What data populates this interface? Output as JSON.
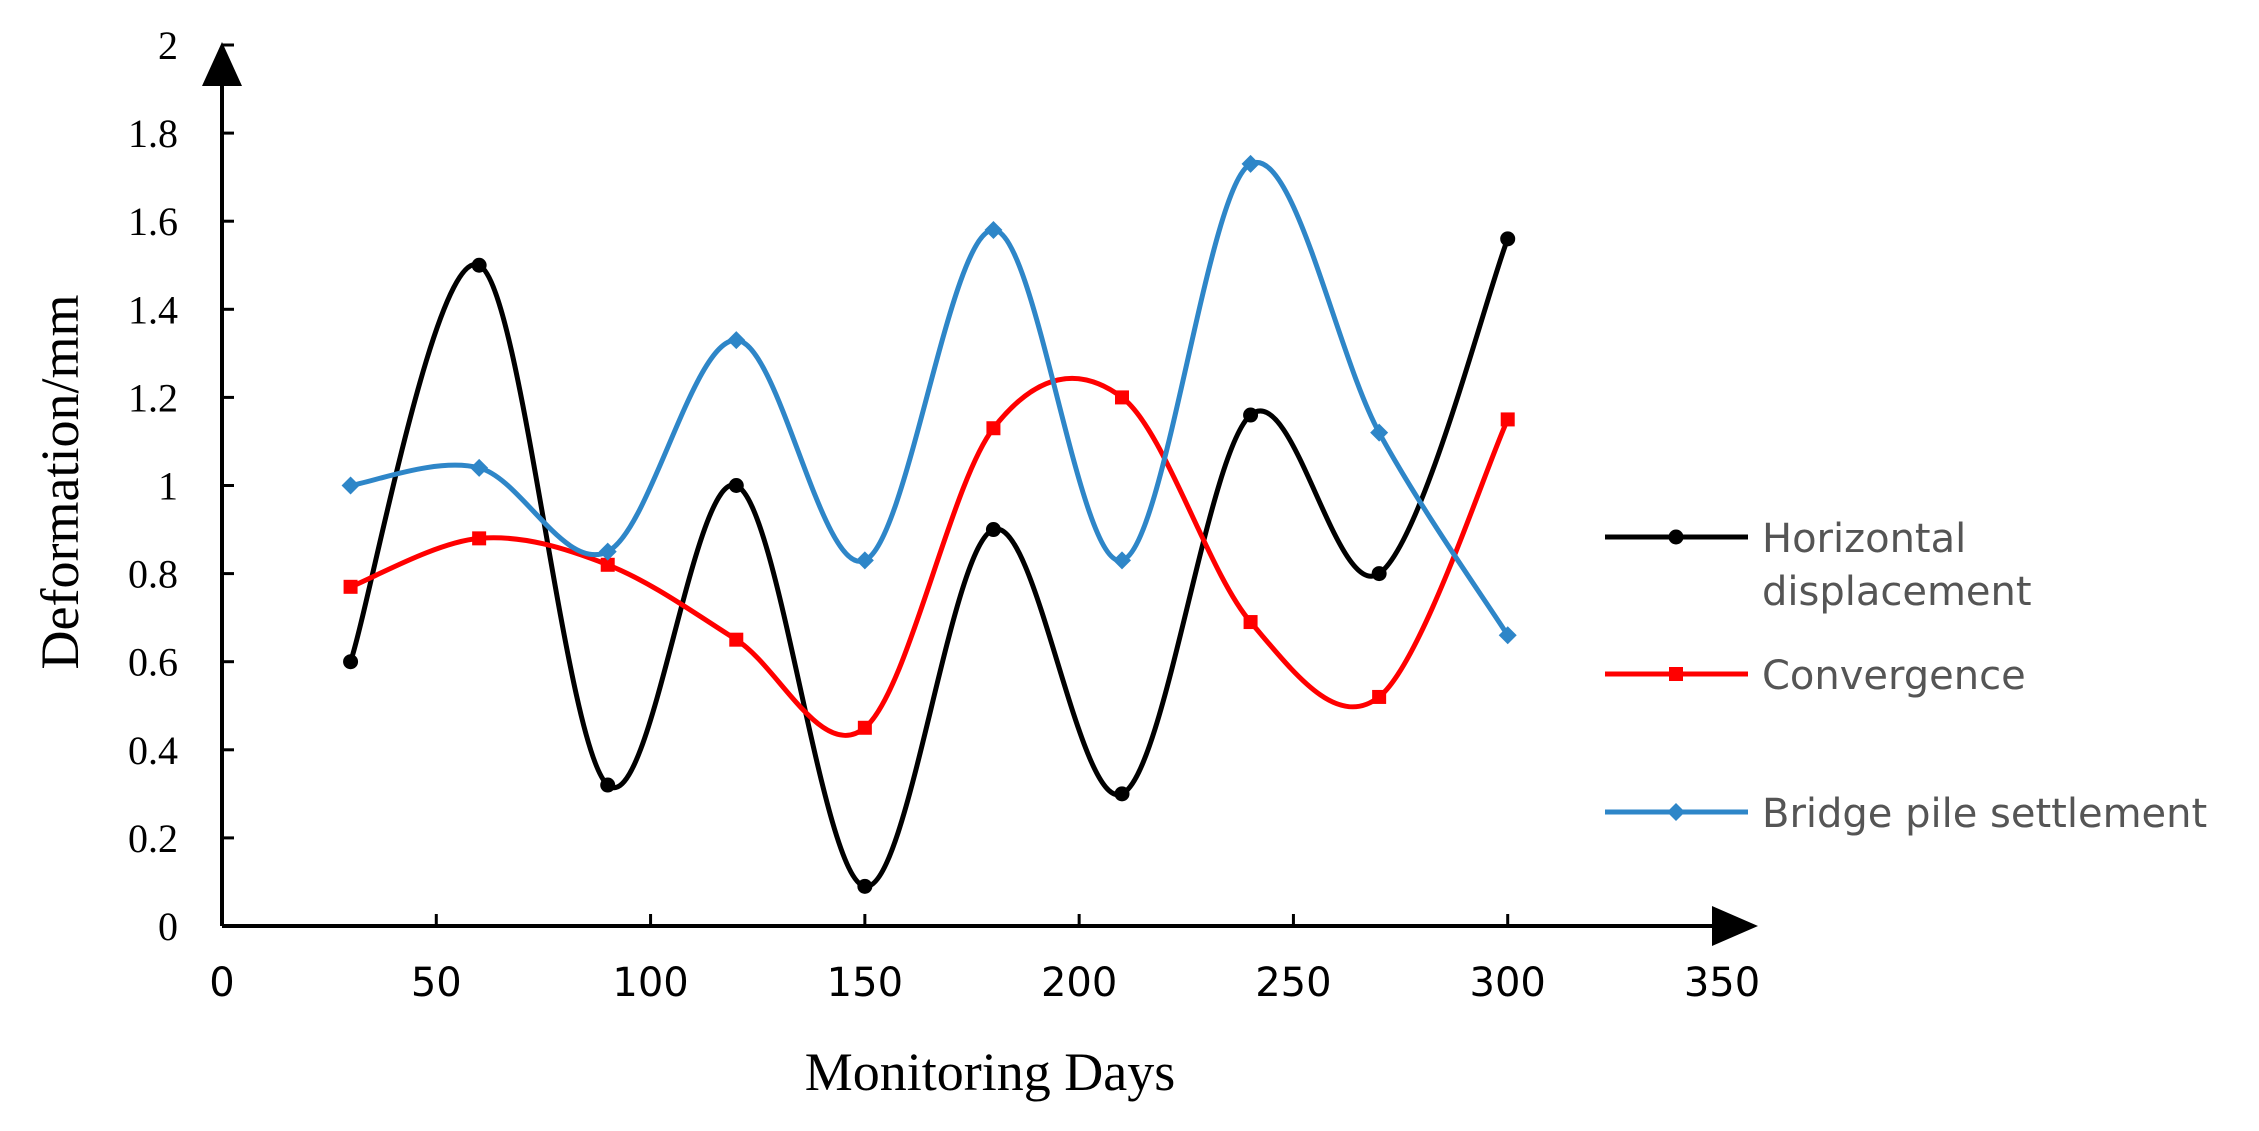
{
  "chart_data": {
    "type": "line",
    "title": "",
    "xlabel": "Monitoring Days",
    "ylabel": "Deformation/mm",
    "xlim": [
      0,
      350
    ],
    "ylim": [
      0,
      2
    ],
    "xticks": [
      0,
      50,
      100,
      150,
      200,
      250,
      300,
      350
    ],
    "yticks": [
      0,
      0.2,
      0.4,
      0.6,
      0.8,
      1,
      1.2,
      1.4,
      1.6,
      1.8,
      2
    ],
    "xtick_labels": [
      "0",
      "50",
      "100",
      "150",
      "200",
      "250",
      "300",
      "350"
    ],
    "ytick_labels": [
      "0",
      "0.2",
      "0.4",
      "0.6",
      "0.8",
      "1",
      "1.2",
      "1.4",
      "1.6",
      "1.8",
      "2"
    ],
    "grid": false,
    "legend_position": "right",
    "x": [
      30,
      60,
      90,
      120,
      150,
      180,
      210,
      240,
      270,
      300
    ],
    "series": [
      {
        "name": "Horizontal displacement",
        "legend_lines": [
          "Horizontal",
          "displacement"
        ],
        "color": "#000000",
        "marker": "circle",
        "values": [
          0.6,
          1.5,
          0.32,
          1.0,
          0.09,
          0.9,
          0.3,
          1.16,
          0.8,
          1.56
        ]
      },
      {
        "name": "Convergence",
        "legend_lines": [
          "Convergence"
        ],
        "color": "#ff0000",
        "marker": "square",
        "values": [
          0.77,
          0.88,
          0.82,
          0.65,
          0.45,
          1.13,
          1.2,
          0.69,
          0.52,
          1.15
        ]
      },
      {
        "name": "Bridge pile settlement",
        "legend_lines": [
          "Bridge pile settlement"
        ],
        "color": "#2e86c8",
        "marker": "diamond",
        "values": [
          1.0,
          1.04,
          0.85,
          1.33,
          0.83,
          1.58,
          0.83,
          1.73,
          1.12,
          0.66
        ]
      }
    ]
  }
}
